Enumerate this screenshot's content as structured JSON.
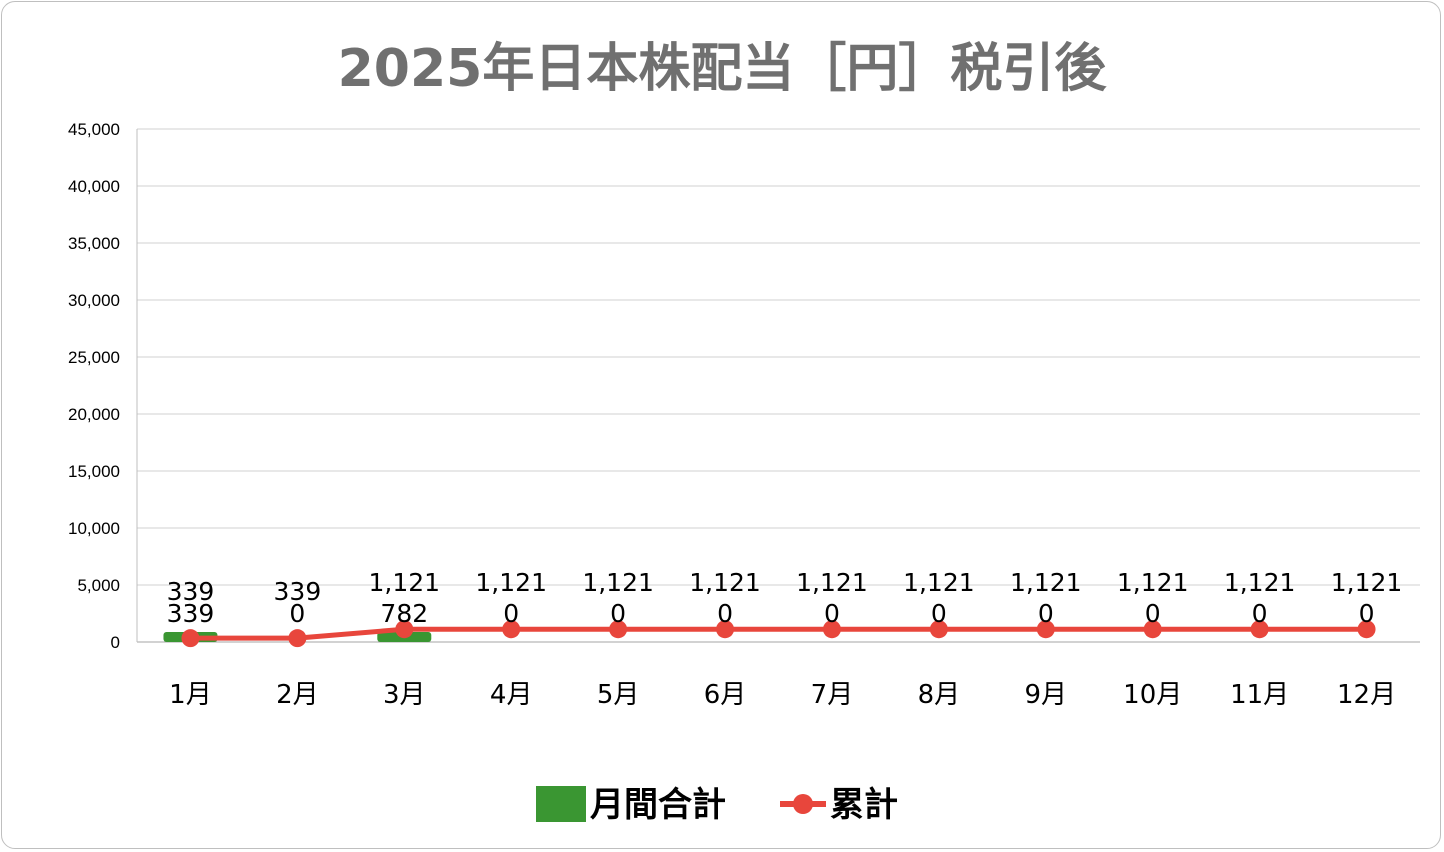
{
  "chart_data": {
    "type": "bar",
    "title": "2025年日本株配当［円］税引後",
    "categories": [
      "1月",
      "2月",
      "3月",
      "4月",
      "5月",
      "6月",
      "7月",
      "8月",
      "9月",
      "10月",
      "11月",
      "12月"
    ],
    "series": [
      {
        "name": "月間合計",
        "type": "bar",
        "color": "#3a9632",
        "values": [
          339,
          0,
          782,
          0,
          0,
          0,
          0,
          0,
          0,
          0,
          0,
          0
        ]
      },
      {
        "name": "累計",
        "type": "line",
        "color": "#e8463c",
        "marker": "circle",
        "values": [
          339,
          339,
          1121,
          1121,
          1121,
          1121,
          1121,
          1121,
          1121,
          1121,
          1121,
          1121
        ]
      }
    ],
    "ylim": [
      0,
      45000
    ],
    "yticks": [
      "0",
      "5,000",
      "10,000",
      "15,000",
      "20,000",
      "25,000",
      "30,000",
      "35,000",
      "40,000",
      "45,000"
    ],
    "grid": true,
    "legend_position": "bottom",
    "data_labels": true
  }
}
